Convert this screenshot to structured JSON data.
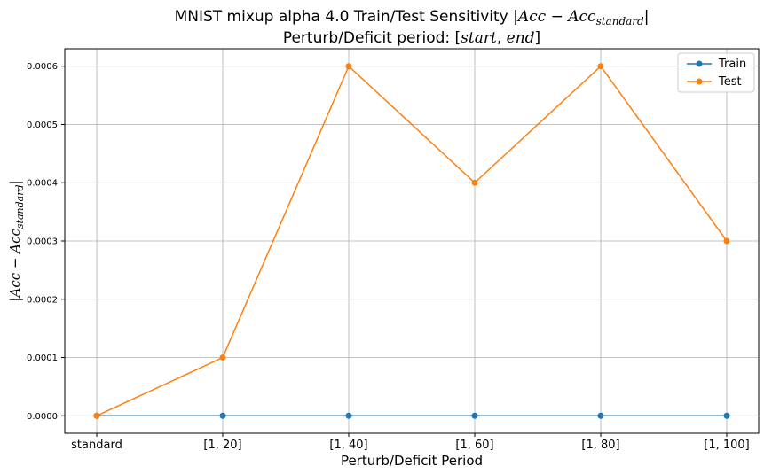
{
  "chart_data": {
    "type": "line",
    "title_line1_prefix": "MNIST mixup alpha 4.0 Train/Test Sensitivity ",
    "title_math_acc": "Acc",
    "title_math_minus": " − ",
    "title_math_sub": "standard",
    "title_line2_prefix": "Perturb/Deficit period: [",
    "title_line2_start": "start",
    "title_line2_sep": ", ",
    "title_line2_end": "end",
    "title_line2_suffix": "]",
    "xlabel": "Perturb/Deficit Period",
    "ylabel_acc": "Acc",
    "ylabel_minus": " − ",
    "ylabel_sub": "standard",
    "categories": [
      "standard",
      "[1, 20]",
      "[1, 40]",
      "[1, 60]",
      "[1, 80]",
      "[1, 100]"
    ],
    "series": [
      {
        "name": "Train",
        "color": "#1f77b4",
        "values": [
          0.0,
          0.0,
          0.0,
          0.0,
          0.0,
          0.0
        ]
      },
      {
        "name": "Test",
        "color": "#ff7f0e",
        "values": [
          0.0,
          0.0001,
          0.0006,
          0.0004,
          0.0006,
          0.0003
        ]
      }
    ],
    "yticks": [
      0.0,
      0.0001,
      0.0002,
      0.0003,
      0.0004,
      0.0005,
      0.0006
    ],
    "ytick_labels": [
      "0.0000",
      "0.0001",
      "0.0002",
      "0.0003",
      "0.0004",
      "0.0005",
      "0.0006"
    ],
    "ylim": [
      -3e-05,
      0.00063
    ],
    "grid": true,
    "legend_position": "top-right"
  }
}
